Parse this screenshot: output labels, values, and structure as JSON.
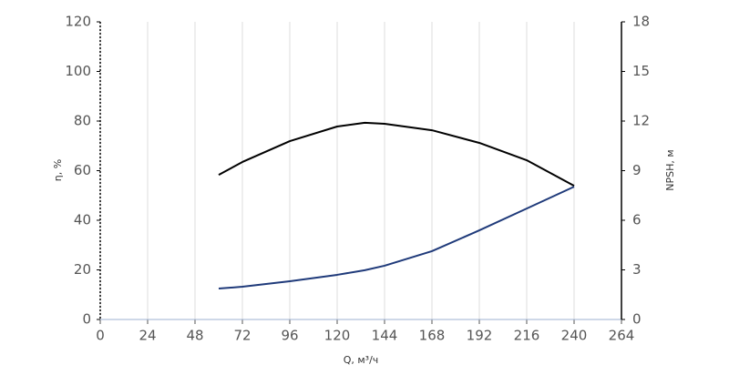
{
  "chart_data": {
    "type": "line",
    "x_label": "Q, м³/ч",
    "y_label": "η, %",
    "y2_label": "NPSH, м",
    "x": [
      60,
      72,
      96,
      120,
      134,
      144,
      168,
      192,
      216,
      240
    ],
    "series": [
      {
        "name": "η",
        "color": "#000000",
        "axis": "y",
        "values": [
          58.3,
          63.5,
          71.9,
          77.8,
          79.3,
          78.9,
          76.3,
          71.2,
          64.2,
          53.9
        ]
      },
      {
        "name": "NPSH",
        "color": "#1f3a7a",
        "axis": "y2",
        "values": [
          1.87,
          1.98,
          2.31,
          2.7,
          2.98,
          3.25,
          4.13,
          5.39,
          6.71,
          8.03
        ]
      }
    ],
    "xlim": [
      0,
      264
    ],
    "xticks": [
      0,
      24,
      48,
      72,
      96,
      120,
      144,
      168,
      192,
      216,
      240,
      264
    ],
    "ylim": [
      0,
      120
    ],
    "yticks": [
      0,
      20,
      40,
      60,
      80,
      100,
      120
    ],
    "y2lim": [
      0,
      18
    ],
    "y2ticks": [
      0,
      3,
      6,
      9,
      12,
      15,
      18
    ],
    "xgrid": true
  }
}
